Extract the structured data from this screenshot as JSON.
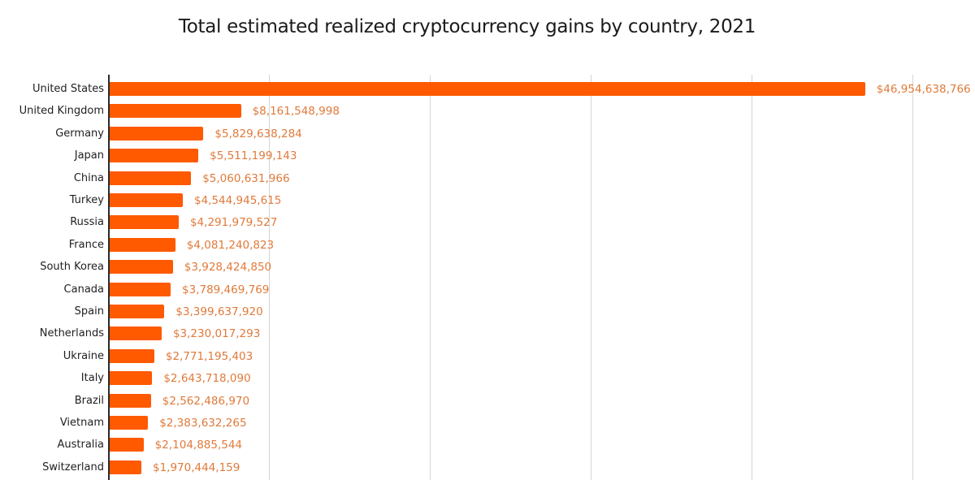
{
  "chart_data": {
    "type": "bar",
    "orientation": "horizontal",
    "title": "Total estimated realized cryptocurrency gains by country, 2021",
    "xlabel": "",
    "ylabel": "",
    "xlim": [
      0,
      50000000000
    ],
    "grid": true,
    "gridlines_x": [
      0,
      10000000000,
      20000000000,
      30000000000,
      40000000000,
      50000000000
    ],
    "legend": null,
    "bar_color": "#ff5a00",
    "label_color": "#e07a3a",
    "categories": [
      "United States",
      "United Kingdom",
      "Germany",
      "Japan",
      "China",
      "Turkey",
      "Russia",
      "France",
      "South Korea",
      "Canada",
      "Spain",
      "Netherlands",
      "Ukraine",
      "Italy",
      "Brazil",
      "Vietnam",
      "Australia",
      "Switzerland"
    ],
    "values": [
      46954638766,
      8161548998,
      5829638284,
      5511199143,
      5060631966,
      4544945615,
      4291979527,
      4081240823,
      3928424850,
      3789469769,
      3399637920,
      3230017293,
      2771195403,
      2643718090,
      2562486970,
      2383632265,
      2104885544,
      1970444159
    ],
    "value_labels": [
      "$46,954,638,766",
      "$8,161,548,998",
      "$5,829,638,284",
      "$5,511,199,143",
      "$5,060,631,966",
      "$4,544,945,615",
      "$4,291,979,527",
      "$4,081,240,823",
      "$3,928,424,850",
      "$3,789,469,769",
      "$3,399,637,920",
      "$3,230,017,293",
      "$2,771,195,403",
      "$2,643,718,090",
      "$2,562,486,970",
      "$2,383,632,265",
      "$2,104,885,544",
      "$1,970,444,159"
    ]
  }
}
